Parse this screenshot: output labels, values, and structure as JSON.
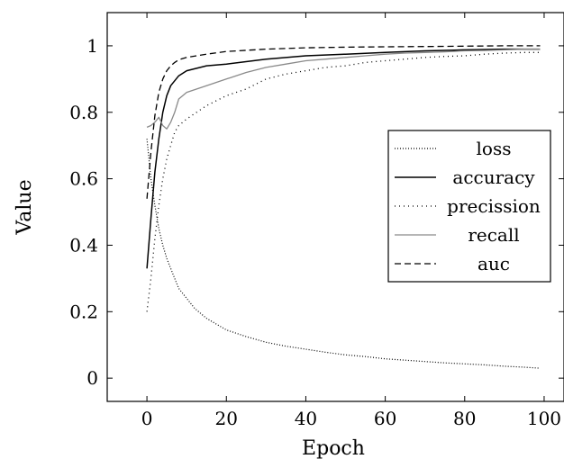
{
  "chart_data": {
    "type": "line",
    "xlabel": "Epoch",
    "ylabel": "Value",
    "xlim": [
      -10,
      105
    ],
    "ylim": [
      -0.07,
      1.1
    ],
    "xticks": [
      0,
      20,
      40,
      60,
      80,
      100
    ],
    "yticks": [
      0,
      0.2,
      0.4,
      0.6,
      0.8,
      1
    ],
    "ytick_labels": [
      "0",
      "0.2",
      "0.4",
      "0.6",
      "0.8",
      "1"
    ],
    "grid": false,
    "legend_position": "center-right",
    "series": [
      {
        "name": "loss",
        "style": "dotted-dense",
        "color": "#000000",
        "x": [
          0,
          1,
          2,
          3,
          4,
          5,
          6,
          7,
          8,
          10,
          12,
          15,
          20,
          25,
          30,
          35,
          40,
          45,
          50,
          55,
          60,
          65,
          70,
          75,
          80,
          85,
          90,
          95,
          99
        ],
        "y": [
          0.72,
          0.6,
          0.52,
          0.45,
          0.4,
          0.36,
          0.33,
          0.3,
          0.27,
          0.24,
          0.21,
          0.18,
          0.145,
          0.125,
          0.108,
          0.096,
          0.087,
          0.078,
          0.07,
          0.065,
          0.058,
          0.054,
          0.05,
          0.046,
          0.043,
          0.04,
          0.036,
          0.033,
          0.03
        ]
      },
      {
        "name": "accuracy",
        "style": "solid",
        "color": "#000000",
        "x": [
          0,
          1,
          2,
          3,
          4,
          5,
          6,
          8,
          10,
          15,
          20,
          30,
          40,
          50,
          60,
          70,
          80,
          90,
          99
        ],
        "y": [
          0.33,
          0.48,
          0.62,
          0.72,
          0.8,
          0.85,
          0.88,
          0.91,
          0.925,
          0.94,
          0.945,
          0.96,
          0.97,
          0.975,
          0.98,
          0.985,
          0.988,
          0.99,
          0.99
        ]
      },
      {
        "name": "precission",
        "style": "dotted-sparse",
        "color": "#000000",
        "x": [
          0,
          1,
          2,
          3,
          4,
          5,
          6,
          7,
          8,
          10,
          15,
          20,
          25,
          30,
          35,
          40,
          45,
          50,
          55,
          60,
          65,
          70,
          75,
          80,
          85,
          90,
          95,
          99
        ],
        "y": [
          0.2,
          0.3,
          0.42,
          0.52,
          0.6,
          0.66,
          0.7,
          0.74,
          0.76,
          0.78,
          0.82,
          0.85,
          0.87,
          0.9,
          0.915,
          0.925,
          0.935,
          0.94,
          0.95,
          0.955,
          0.96,
          0.965,
          0.968,
          0.97,
          0.975,
          0.978,
          0.98,
          0.98
        ]
      },
      {
        "name": "recall",
        "style": "solid-gray",
        "color": "#888888",
        "x": [
          0,
          1,
          2,
          3,
          4,
          5,
          6,
          7,
          8,
          10,
          15,
          20,
          25,
          30,
          35,
          40,
          45,
          50,
          55,
          60,
          65,
          70,
          75,
          80,
          85,
          90,
          95,
          99
        ],
        "y": [
          0.755,
          0.76,
          0.77,
          0.785,
          0.76,
          0.75,
          0.77,
          0.8,
          0.84,
          0.86,
          0.88,
          0.9,
          0.92,
          0.935,
          0.945,
          0.955,
          0.96,
          0.965,
          0.97,
          0.975,
          0.978,
          0.98,
          0.982,
          0.985,
          0.986,
          0.988,
          0.99,
          0.99
        ]
      },
      {
        "name": "auc",
        "style": "dashed",
        "color": "#000000",
        "x": [
          0,
          1,
          2,
          3,
          4,
          5,
          6,
          7,
          8,
          10,
          15,
          20,
          30,
          40,
          50,
          60,
          70,
          80,
          90,
          99
        ],
        "y": [
          0.54,
          0.68,
          0.79,
          0.86,
          0.9,
          0.925,
          0.94,
          0.95,
          0.958,
          0.965,
          0.975,
          0.983,
          0.99,
          0.994,
          0.996,
          0.997,
          0.998,
          0.999,
          1.0,
          1.0
        ]
      }
    ]
  }
}
